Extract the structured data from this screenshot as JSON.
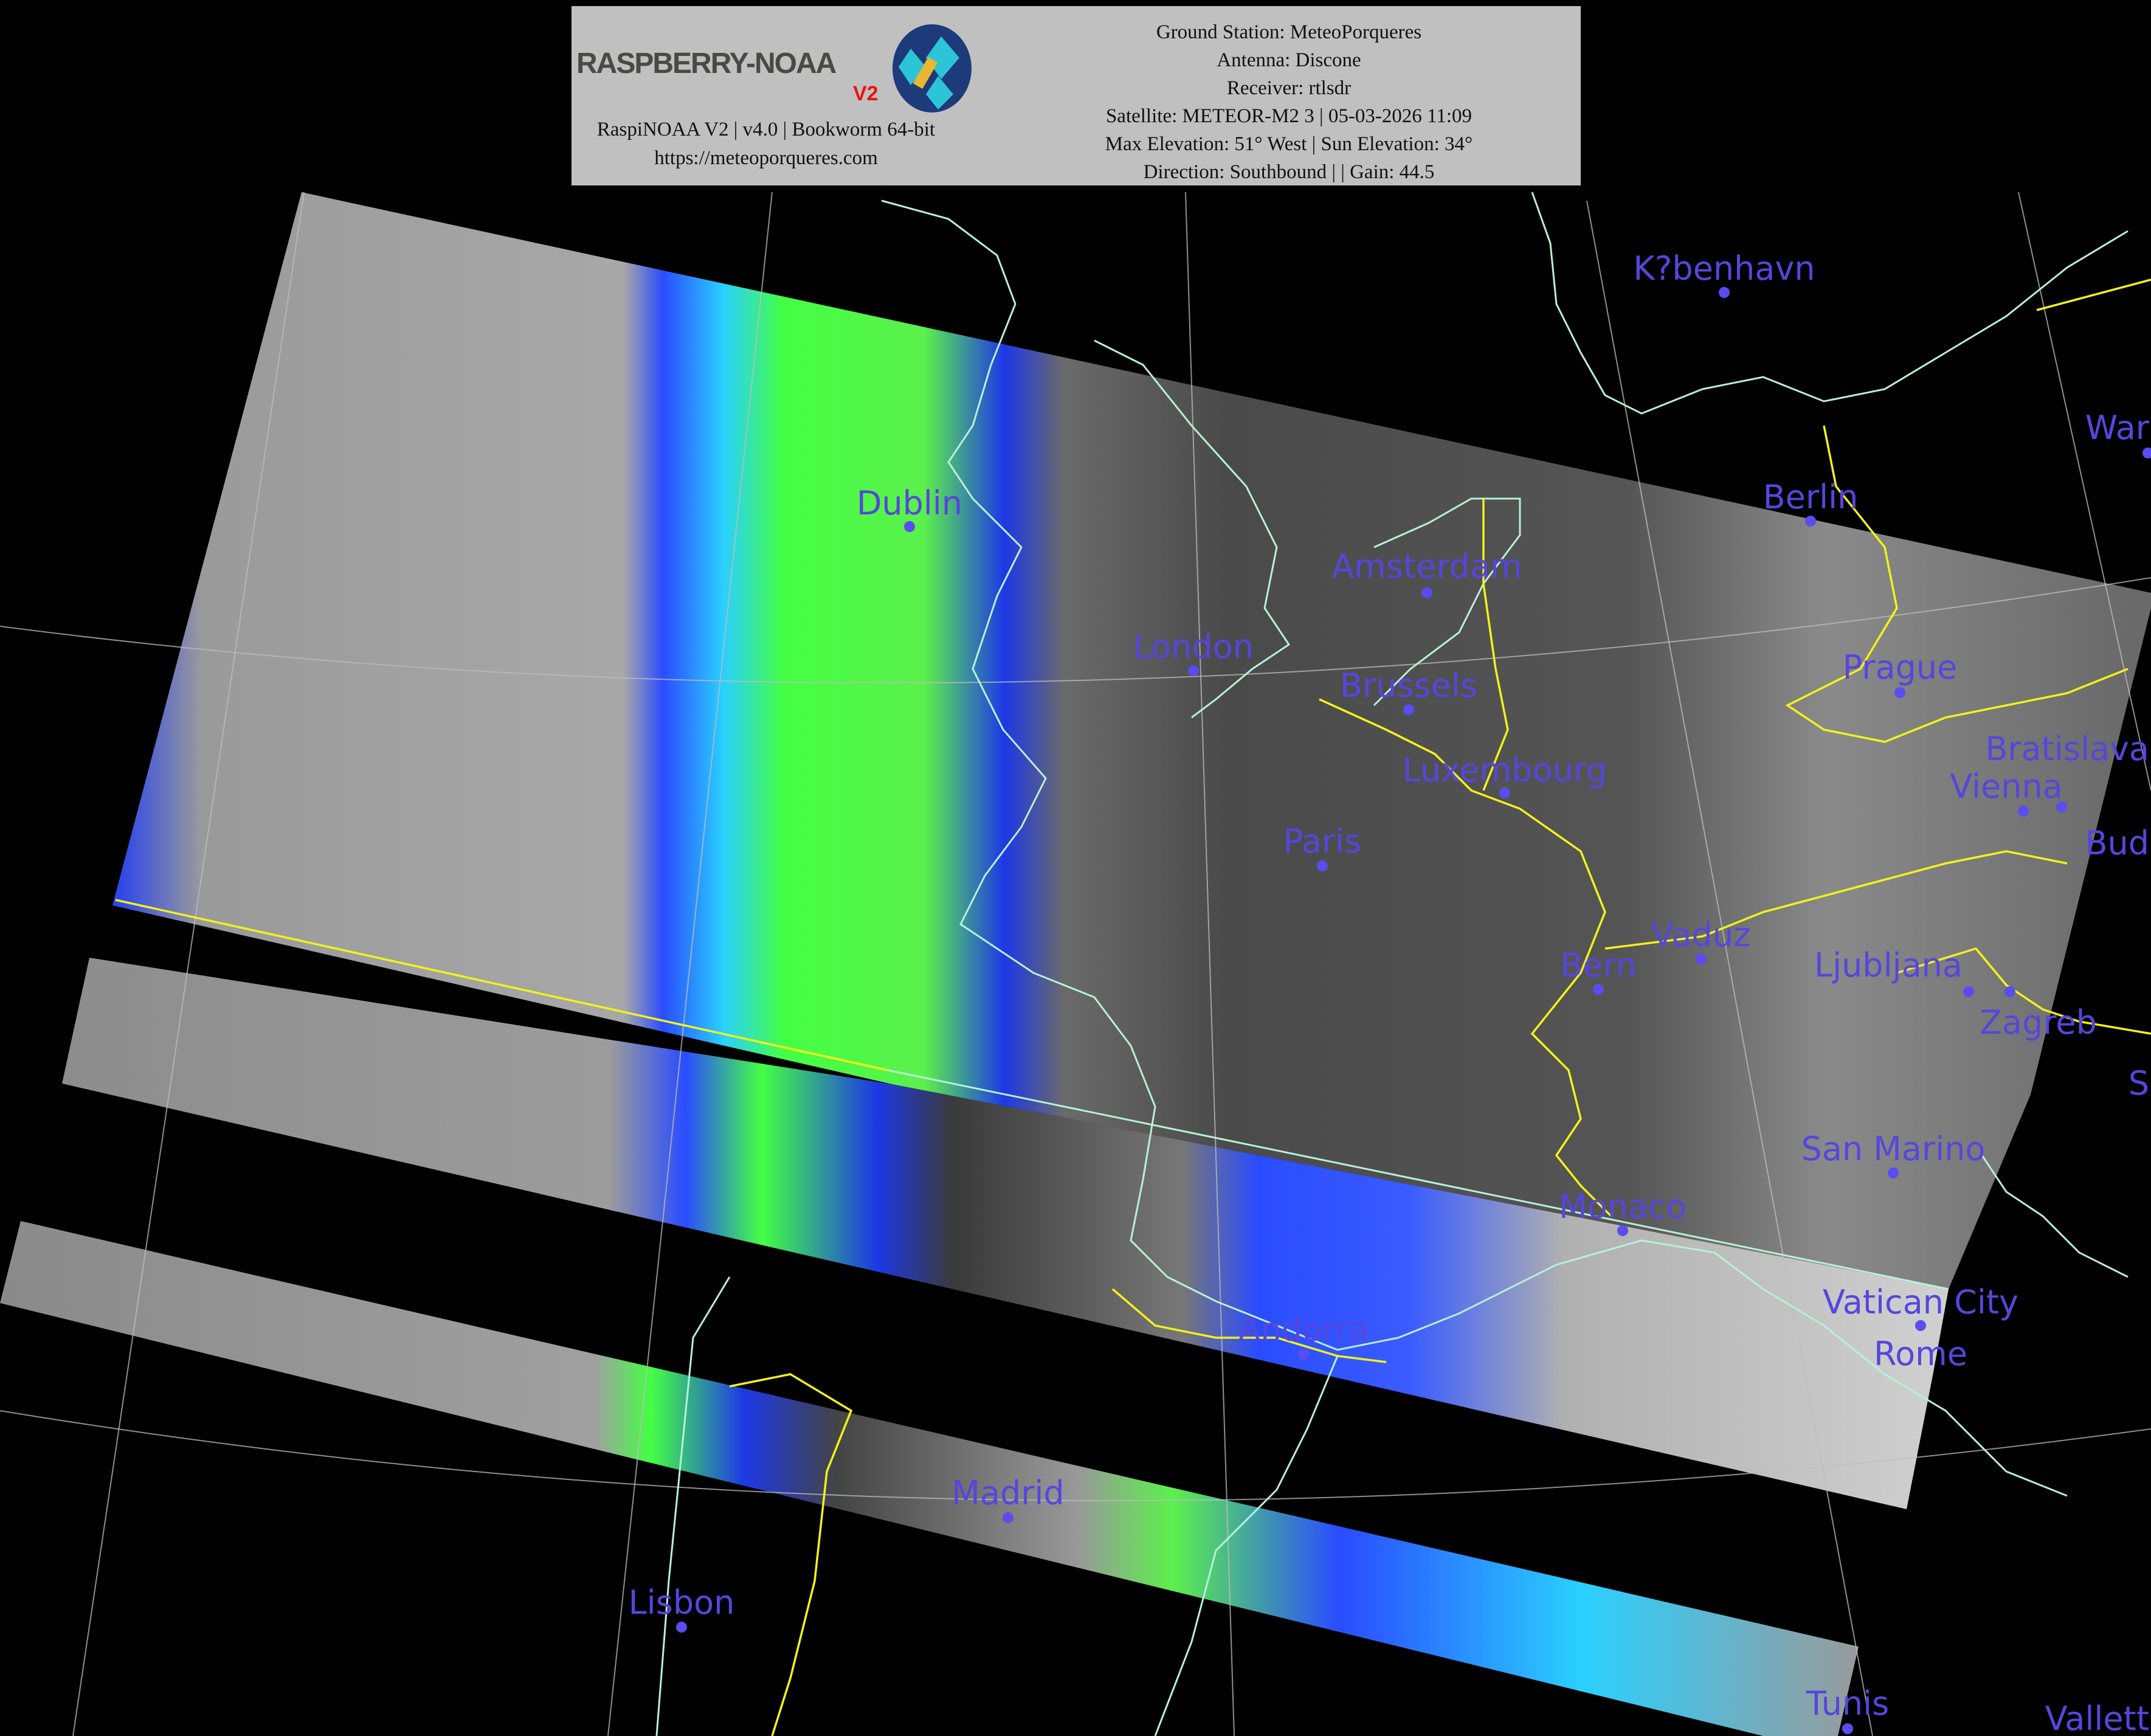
{
  "header": {
    "logo_text": "RASPBERRY-NOAA",
    "logo_version": "V2",
    "software_line": "RaspiNOAA V2 | v4.0 | Bookworm 64-bit",
    "website": "https://meteoporqueres.com",
    "ground_station": "Ground Station: MeteoPorqueres",
    "antenna": "Antenna: Discone",
    "receiver": "Receiver: rtlsdr",
    "satellite": "Satellite: METEOR-M2 3 | 05-03-2026 11:09",
    "elevation": "Max Elevation: 51° West | Sun Elevation: 34°",
    "direction": "Direction: Southbound | | Gain: 44.5"
  },
  "colors": {
    "city_label": "#5646dc",
    "coastline": "#b8f0d8",
    "border": "#f2f21a",
    "header_bg": "#c0c0c0"
  },
  "cities": [
    "K?benhavn",
    "Berlin",
    "War",
    "Dublin",
    "Amsterdam",
    "London",
    "Brussels",
    "Prague",
    "Luxembourg",
    "Paris",
    "Vienna",
    "Bratislava",
    "Bud",
    "Vaduz",
    "Bern",
    "Ljubljana",
    "Zagreb",
    "S",
    "San Marino",
    "Monaco",
    "Vatican City",
    "Rome",
    "Andorra",
    "Madrid",
    "Lisbon",
    "Tunis",
    "Vallett"
  ]
}
